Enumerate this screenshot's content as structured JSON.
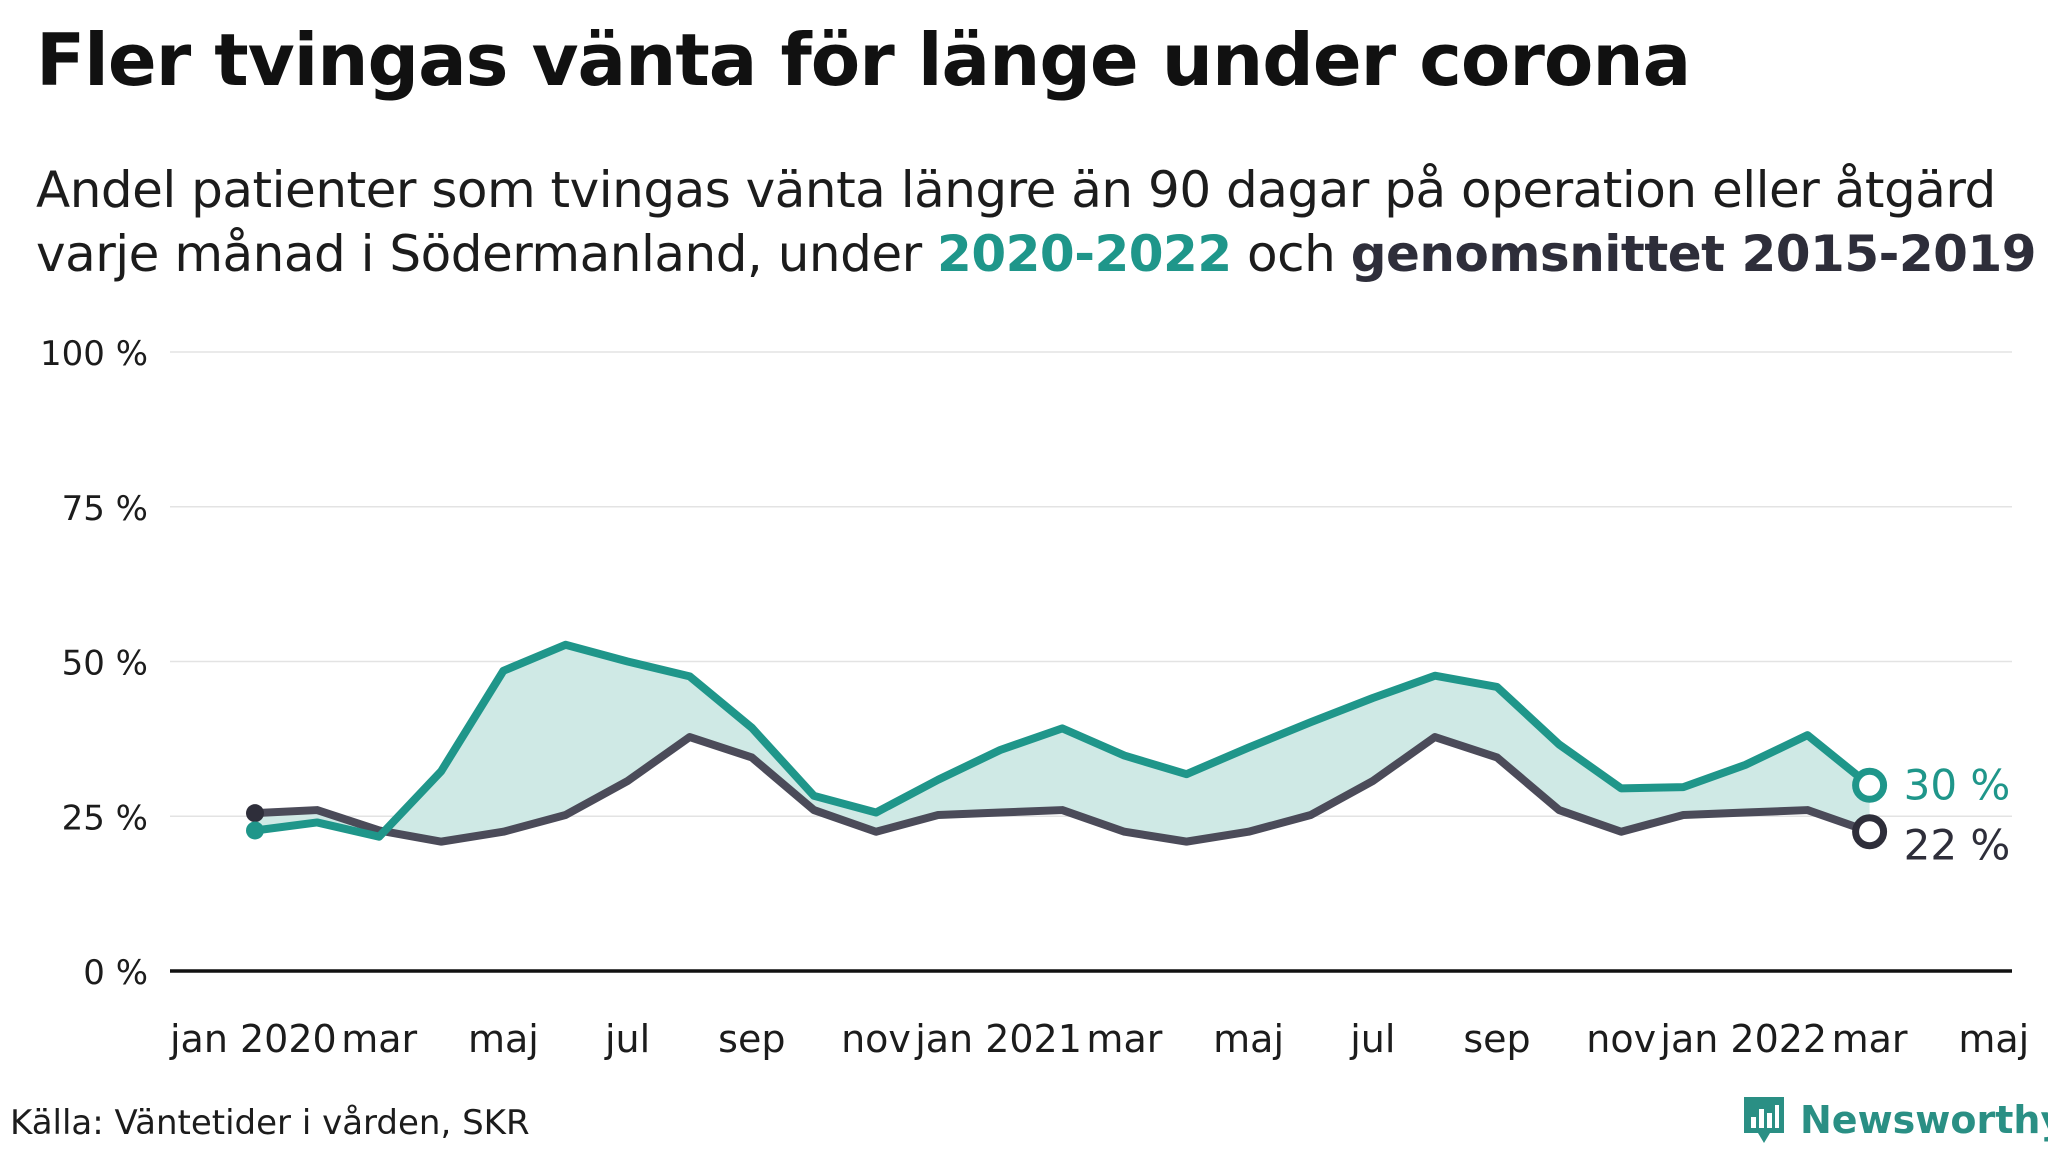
{
  "title": "Fler tvingas vänta för länge under corona",
  "subtitle": {
    "line1": "Andel patienter som tvingas vänta längre än 90 dagar på operation eller åtgärd",
    "line2_prefix": "varje månad i Södermanland, under ",
    "highlight_a": "2020-2022",
    "connector": " och ",
    "highlight_b": "genomsnittet 2015-2019"
  },
  "source": "Källa: Väntetider i vården, SKR",
  "brand": {
    "name": "Newsworthy",
    "icon": "bar-chart-pin-icon",
    "color": "#2a8f84"
  },
  "colors": {
    "series_a": "#1f968a",
    "series_b": "#4b4b59",
    "band": "#cfe9e5",
    "grid": "#e3e3e3",
    "axis": "#111111"
  },
  "chart_data": {
    "type": "line",
    "x_tick_labels": [
      "jan 2020",
      "mar",
      "maj",
      "jul",
      "sep",
      "nov",
      "jan 2021",
      "mar",
      "maj",
      "jul",
      "sep",
      "nov",
      "jan 2022",
      "mar",
      "maj"
    ],
    "x_range": [
      "2020-01",
      "2022-05"
    ],
    "y_ticks": [
      0,
      25,
      50,
      75,
      100
    ],
    "y_tick_labels": [
      "0 %",
      "25 %",
      "50 %",
      "75 %",
      "100 %"
    ],
    "ylim": [
      0,
      100
    ],
    "grid": true,
    "shaded_between_series": true,
    "series": [
      {
        "name": "2020-2022",
        "x": [
          "2020-01",
          "2020-02",
          "2020-03",
          "2020-04",
          "2020-05",
          "2020-06",
          "2020-07",
          "2020-08",
          "2020-09",
          "2020-10",
          "2020-11",
          "2020-12",
          "2021-01",
          "2021-02",
          "2021-03",
          "2021-04",
          "2021-05",
          "2021-06",
          "2021-07",
          "2021-08",
          "2021-09",
          "2021-10",
          "2021-11",
          "2021-12",
          "2022-01",
          "2022-02",
          "2022-03"
        ],
        "values": [
          22.7,
          24,
          21.7,
          32.3,
          48.5,
          52.7,
          50,
          47.6,
          39.3,
          28.3,
          25.6,
          30.9,
          35.7,
          39.2,
          34.8,
          31.8,
          36.1,
          40.2,
          44.1,
          47.7,
          45.9,
          36.6,
          29.5,
          29.7,
          33.3,
          38.1,
          30
        ]
      },
      {
        "name": "genomsnittet 2015-2019",
        "x": [
          "2020-01",
          "2020-02",
          "2020-03",
          "2020-04",
          "2020-05",
          "2020-06",
          "2020-07",
          "2020-08",
          "2020-09",
          "2020-10",
          "2020-11",
          "2020-12",
          "2021-01",
          "2021-02",
          "2021-03",
          "2021-04",
          "2021-05",
          "2021-06",
          "2021-07",
          "2021-08",
          "2021-09",
          "2021-10",
          "2021-11",
          "2021-12",
          "2022-01",
          "2022-02",
          "2022-03"
        ],
        "values": [
          25.5,
          26,
          22.7,
          20.9,
          22.5,
          25.2,
          30.7,
          37.8,
          34.5,
          26,
          22.5,
          25.2,
          25.6,
          26,
          22.5,
          20.9,
          22.5,
          25.2,
          30.7,
          37.8,
          34.5,
          26,
          22.5,
          25.2,
          25.6,
          26,
          22.5
        ]
      }
    ],
    "end_labels": [
      "30 %",
      "22 %"
    ]
  }
}
